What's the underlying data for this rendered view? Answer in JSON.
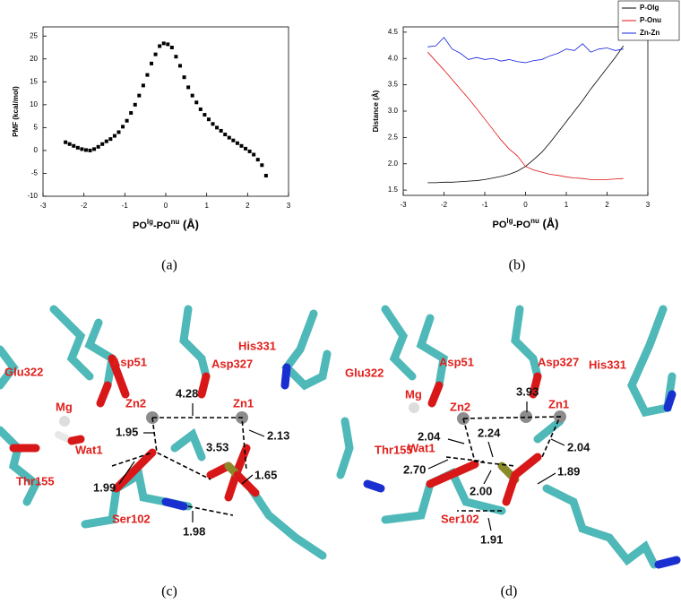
{
  "chart_data": [
    {
      "type": "scatter",
      "ylabel": "PMF (kcal/mol)",
      "xlabel_parts": [
        "PO",
        "lg",
        "-PO",
        "nu",
        " (Å)"
      ],
      "color": "#000000",
      "x": [
        -2.45,
        -2.35,
        -2.25,
        -2.15,
        -2.05,
        -1.95,
        -1.85,
        -1.75,
        -1.65,
        -1.55,
        -1.45,
        -1.35,
        -1.25,
        -1.15,
        -1.05,
        -0.95,
        -0.85,
        -0.75,
        -0.65,
        -0.55,
        -0.45,
        -0.35,
        -0.25,
        -0.15,
        -0.05,
        0.05,
        0.15,
        0.25,
        0.35,
        0.45,
        0.55,
        0.65,
        0.75,
        0.85,
        0.95,
        1.05,
        1.15,
        1.25,
        1.35,
        1.45,
        1.55,
        1.65,
        1.75,
        1.85,
        1.95,
        2.05,
        2.15,
        2.25,
        2.35,
        2.45
      ],
      "values": [
        1.8,
        1.4,
        1.0,
        0.6,
        0.3,
        0.1,
        0.0,
        0.3,
        0.8,
        1.4,
        2.0,
        2.5,
        3.2,
        4.0,
        5.2,
        6.5,
        8.2,
        10.0,
        12.0,
        14.2,
        16.5,
        19.0,
        21.0,
        22.8,
        23.4,
        23.2,
        22.5,
        20.5,
        18.5,
        16.0,
        13.8,
        12.0,
        10.5,
        9.0,
        7.8,
        6.8,
        5.8,
        5.0,
        4.3,
        3.5,
        2.8,
        2.2,
        1.6,
        1.0,
        0.4,
        -0.2,
        -0.9,
        -2.0,
        -3.2,
        -5.5
      ],
      "xlim": [
        -3,
        3
      ],
      "xticks": [
        -3,
        -2,
        -1,
        0,
        1,
        2,
        3
      ],
      "ylim": [
        -10,
        27
      ],
      "yticks": [
        -10,
        -5,
        0,
        5,
        10,
        15,
        20,
        25
      ]
    },
    {
      "type": "line",
      "ylabel": "Distance (Å)",
      "xlabel_parts": [
        "PO",
        "lg",
        "-PO",
        "nu",
        " (Å)"
      ],
      "legend": "upper right",
      "x": [
        -2.4,
        -2.2,
        -2.0,
        -1.8,
        -1.6,
        -1.4,
        -1.2,
        -1.0,
        -0.8,
        -0.6,
        -0.4,
        -0.2,
        0,
        0.2,
        0.4,
        0.6,
        0.8,
        1.0,
        1.2,
        1.4,
        1.6,
        1.8,
        2.0,
        2.2,
        2.4
      ],
      "series": [
        {
          "name": "P-Olg",
          "color": "#000000",
          "values": [
            1.64,
            1.64,
            1.65,
            1.65,
            1.66,
            1.67,
            1.68,
            1.7,
            1.73,
            1.76,
            1.8,
            1.86,
            1.95,
            2.08,
            2.22,
            2.4,
            2.6,
            2.8,
            3.0,
            3.2,
            3.42,
            3.62,
            3.82,
            4.02,
            4.24
          ]
        },
        {
          "name": "P-Onu",
          "color": "#e01010",
          "values": [
            4.12,
            3.95,
            3.78,
            3.6,
            3.42,
            3.24,
            3.05,
            2.85,
            2.65,
            2.45,
            2.28,
            2.15,
            1.95,
            1.88,
            1.84,
            1.8,
            1.78,
            1.75,
            1.73,
            1.72,
            1.7,
            1.7,
            1.7,
            1.71,
            1.72
          ]
        },
        {
          "name": "Zn-Zn",
          "color": "#1020e0",
          "values": [
            4.22,
            4.24,
            4.4,
            4.18,
            4.1,
            3.98,
            4.02,
            3.98,
            4.0,
            3.95,
            3.98,
            3.94,
            3.92,
            3.96,
            3.98,
            4.05,
            4.1,
            4.18,
            4.15,
            4.28,
            4.12,
            4.18,
            4.2,
            4.15,
            4.18
          ]
        }
      ],
      "xlim": [
        -3,
        3
      ],
      "xticks": [
        -3,
        -2,
        -1,
        0,
        1,
        2,
        3
      ],
      "ylim": [
        1.4,
        4.6
      ],
      "yticks": [
        1.5,
        {
          "value": 2,
          "label": "2.0"
        },
        2.5,
        {
          "value": 3,
          "label": "3.0"
        },
        3.5,
        {
          "value": 4,
          "label": "4.0"
        },
        4.5
      ]
    }
  ],
  "captions": [
    "(a)",
    "(b)",
    "(c)",
    "(d)"
  ],
  "structures": [
    {
      "labels": [
        "Glu322",
        "Asp51",
        "Asp327",
        "His331",
        "Mg",
        "Zn2",
        "Zn1",
        "Wat1",
        "Thr155",
        "Ser102"
      ],
      "distances": [
        "4.28",
        "1.95",
        "2.13",
        "3.53",
        "1.65",
        "1.99",
        "1.98"
      ]
    },
    {
      "labels": [
        "Glu322",
        "Asp51",
        "Asp327",
        "His331",
        "Mg",
        "Thr155",
        "Zn2",
        "Zn1",
        "Wat1",
        "Ser102"
      ],
      "distances": [
        "3.93",
        "2.04",
        "2.24",
        "2.04",
        "2.70",
        "2.00",
        "1.89",
        "1.91"
      ]
    }
  ]
}
